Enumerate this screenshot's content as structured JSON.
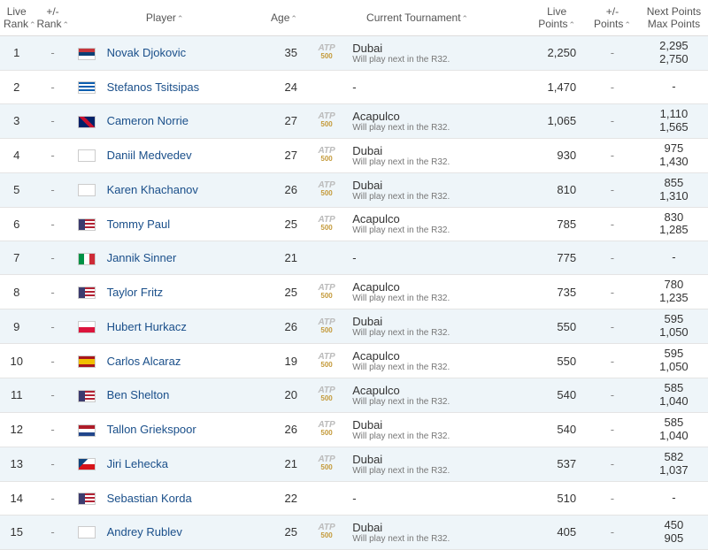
{
  "headers": {
    "live_rank": "Live Rank",
    "pm_rank": "+/- Rank",
    "player": "Player",
    "age": "Age",
    "current_tournament": "Current Tournament",
    "live_points": "Live Points",
    "pm_points": "+/- Points",
    "next_points1": "Next Points",
    "next_points2": "Max Points",
    "sort_asc": "⌃"
  },
  "tournament_sub": "Will play next in the R32.",
  "atp_label": "ATP",
  "atp_series": "500",
  "flag_styles": {
    "rs": "linear-gradient(to bottom,#c6363c 33%,#0c4076 33%,#0c4076 66%,#fff 66%)",
    "gr": "repeating-linear-gradient(to bottom,#0d5eaf 0 2px,#fff 2px 4px)",
    "gb": "linear-gradient(45deg,#012169 40%,#c8102e 40%,#c8102e 60%,#012169 60%),linear-gradient(-45deg,transparent 40%,#fff 40%,#fff 60%,transparent 60%)",
    "blank": "#fff",
    "us": "linear-gradient(to right,#3c3b6e 0 40%,transparent 40%),repeating-linear-gradient(to bottom,#b22234 0 2px,#fff 2px 4px)",
    "it": "linear-gradient(to right,#009246 33%,#fff 33%,#fff 66%,#ce2b37 66%)",
    "pl": "linear-gradient(to bottom,#fff 50%,#dc143c 50%)",
    "es": "linear-gradient(to bottom,#aa151b 25%,#f1bf00 25%,#f1bf00 75%,#aa151b 75%)",
    "nl": "linear-gradient(to bottom,#ae1c28 33%,#fff 33%,#fff 66%,#21468b 66%)",
    "cz": "linear-gradient(135deg,#11457e 35%,transparent 35%),linear-gradient(to bottom,#fff 50%,#d7141a 50%)"
  },
  "rows": [
    {
      "rank": "1",
      "pm": "-",
      "flag": "rs",
      "player": "Novak Djokovic",
      "age": "35",
      "tournament": "Dubai",
      "has_t": true,
      "lpts": "2,250",
      "pmpts": "-",
      "next1": "2,295",
      "next2": "2,750"
    },
    {
      "rank": "2",
      "pm": "-",
      "flag": "gr",
      "player": "Stefanos Tsitsipas",
      "age": "24",
      "tournament": "-",
      "has_t": false,
      "lpts": "1,470",
      "pmpts": "-",
      "next1": "-",
      "next2": ""
    },
    {
      "rank": "3",
      "pm": "-",
      "flag": "gb",
      "player": "Cameron Norrie",
      "age": "27",
      "tournament": "Acapulco",
      "has_t": true,
      "lpts": "1,065",
      "pmpts": "-",
      "next1": "1,110",
      "next2": "1,565"
    },
    {
      "rank": "4",
      "pm": "-",
      "flag": "blank",
      "player": "Daniil Medvedev",
      "age": "27",
      "tournament": "Dubai",
      "has_t": true,
      "lpts": "930",
      "pmpts": "-",
      "next1": "975",
      "next2": "1,430"
    },
    {
      "rank": "5",
      "pm": "-",
      "flag": "blank",
      "player": "Karen Khachanov",
      "age": "26",
      "tournament": "Dubai",
      "has_t": true,
      "lpts": "810",
      "pmpts": "-",
      "next1": "855",
      "next2": "1,310"
    },
    {
      "rank": "6",
      "pm": "-",
      "flag": "us",
      "player": "Tommy Paul",
      "age": "25",
      "tournament": "Acapulco",
      "has_t": true,
      "lpts": "785",
      "pmpts": "-",
      "next1": "830",
      "next2": "1,285"
    },
    {
      "rank": "7",
      "pm": "-",
      "flag": "it",
      "player": "Jannik Sinner",
      "age": "21",
      "tournament": "-",
      "has_t": false,
      "lpts": "775",
      "pmpts": "-",
      "next1": "-",
      "next2": ""
    },
    {
      "rank": "8",
      "pm": "-",
      "flag": "us",
      "player": "Taylor Fritz",
      "age": "25",
      "tournament": "Acapulco",
      "has_t": true,
      "lpts": "735",
      "pmpts": "-",
      "next1": "780",
      "next2": "1,235"
    },
    {
      "rank": "9",
      "pm": "-",
      "flag": "pl",
      "player": "Hubert Hurkacz",
      "age": "26",
      "tournament": "Dubai",
      "has_t": true,
      "lpts": "550",
      "pmpts": "-",
      "next1": "595",
      "next2": "1,050"
    },
    {
      "rank": "10",
      "pm": "-",
      "flag": "es",
      "player": "Carlos Alcaraz",
      "age": "19",
      "tournament": "Acapulco",
      "has_t": true,
      "lpts": "550",
      "pmpts": "-",
      "next1": "595",
      "next2": "1,050"
    },
    {
      "rank": "11",
      "pm": "-",
      "flag": "us",
      "player": "Ben Shelton",
      "age": "20",
      "tournament": "Acapulco",
      "has_t": true,
      "lpts": "540",
      "pmpts": "-",
      "next1": "585",
      "next2": "1,040"
    },
    {
      "rank": "12",
      "pm": "-",
      "flag": "nl",
      "player": "Tallon Griekspoor",
      "age": "26",
      "tournament": "Dubai",
      "has_t": true,
      "lpts": "540",
      "pmpts": "-",
      "next1": "585",
      "next2": "1,040"
    },
    {
      "rank": "13",
      "pm": "-",
      "flag": "cz",
      "player": "Jiri Lehecka",
      "age": "21",
      "tournament": "Dubai",
      "has_t": true,
      "lpts": "537",
      "pmpts": "-",
      "next1": "582",
      "next2": "1,037"
    },
    {
      "rank": "14",
      "pm": "-",
      "flag": "us",
      "player": "Sebastian Korda",
      "age": "22",
      "tournament": "-",
      "has_t": false,
      "lpts": "510",
      "pmpts": "-",
      "next1": "-",
      "next2": ""
    },
    {
      "rank": "15",
      "pm": "-",
      "flag": "blank",
      "player": "Andrey Rublev",
      "age": "25",
      "tournament": "Dubai",
      "has_t": true,
      "lpts": "405",
      "pmpts": "-",
      "next1": "450",
      "next2": "905"
    }
  ]
}
